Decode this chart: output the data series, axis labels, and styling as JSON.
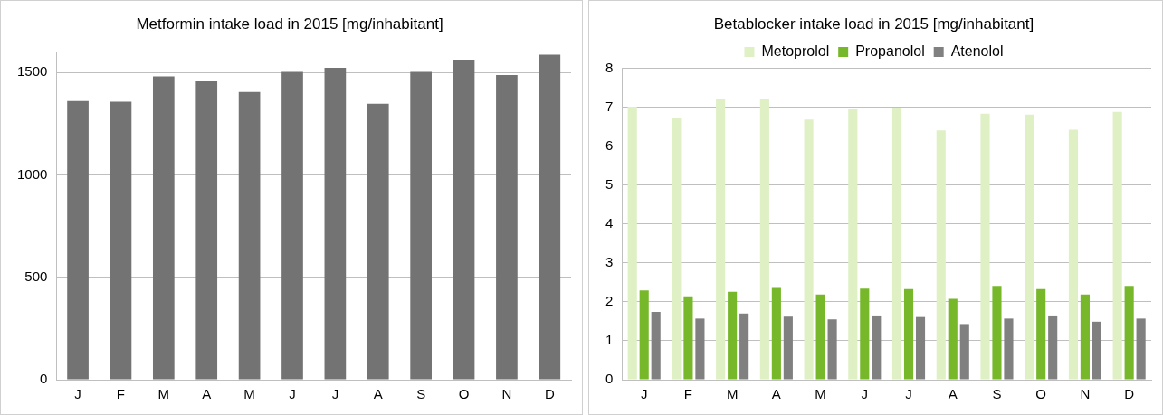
{
  "chart_data": [
    {
      "type": "bar",
      "title": "Metformin intake load in 2015 [mg/inhabitant]",
      "categories": [
        "J",
        "F",
        "M",
        "A",
        "M",
        "J",
        "J",
        "A",
        "S",
        "O",
        "N",
        "D"
      ],
      "values": [
        1360,
        1357,
        1480,
        1456,
        1404,
        1503,
        1522,
        1347,
        1502,
        1562,
        1487,
        1586
      ],
      "color": "#737373",
      "ylim": [
        0,
        1600
      ],
      "yticks": [
        0,
        500,
        1000,
        1500
      ],
      "grid": "y",
      "legend": false
    },
    {
      "type": "bar",
      "title": "Betablocker intake load in 2015 [mg/inhabitant]",
      "categories": [
        "J",
        "F",
        "M",
        "A",
        "M",
        "J",
        "J",
        "A",
        "S",
        "O",
        "N",
        "D"
      ],
      "series": [
        {
          "name": "Metoprolol",
          "color": "#dff0c5",
          "values": [
            7.01,
            6.71,
            7.21,
            7.22,
            6.68,
            6.94,
            6.99,
            6.4,
            6.83,
            6.81,
            6.42,
            6.88
          ]
        },
        {
          "name": "Propanolol",
          "color": "#77b82a",
          "values": [
            2.29,
            2.14,
            2.26,
            2.38,
            2.19,
            2.34,
            2.33,
            2.08,
            2.41,
            2.33,
            2.19,
            2.41
          ]
        },
        {
          "name": "Atenolol",
          "color": "#808080",
          "values": [
            1.74,
            1.57,
            1.7,
            1.62,
            1.55,
            1.65,
            1.61,
            1.43,
            1.57,
            1.65,
            1.49,
            1.57
          ]
        }
      ],
      "ylim": [
        0,
        8
      ],
      "yticks": [
        0,
        1,
        2,
        3,
        4,
        5,
        6,
        7,
        8
      ],
      "grid": "y",
      "legend": "top"
    }
  ]
}
